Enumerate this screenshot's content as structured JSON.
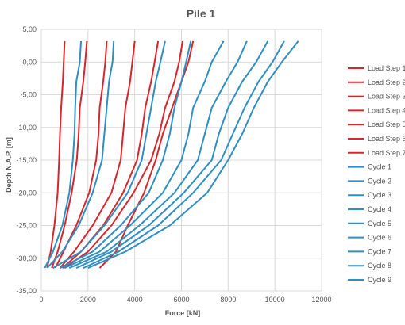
{
  "chart_data": {
    "type": "line",
    "title": "Pile 1",
    "xlabel": "Force [kN]",
    "ylabel": "Depth N.A.P. [m]",
    "xlim": [
      0,
      12000
    ],
    "ylim": [
      -35,
      5
    ],
    "x_ticks": [
      "0",
      "2000",
      "4000",
      "6000",
      "8000",
      "10000",
      "12000"
    ],
    "y_ticks": [
      "5,00",
      "0,00",
      "-5,00",
      "-10,00",
      "-15,00",
      "-20,00",
      "-25,00",
      "-30,00",
      "-35,00"
    ],
    "grid": true,
    "legend_position": "right",
    "colors": {
      "load_step": "#d9262b",
      "cycle": "#2e8fc4"
    },
    "series": [
      {
        "name": "Load Step 1",
        "color": "#d9262b",
        "points": [
          [
            1000,
            3.2
          ],
          [
            960,
            0
          ],
          [
            920,
            -3
          ],
          [
            850,
            -7
          ],
          [
            800,
            -11
          ],
          [
            760,
            -15
          ],
          [
            700,
            -20
          ],
          [
            560,
            -25
          ],
          [
            400,
            -29
          ],
          [
            250,
            -31.5
          ]
        ]
      },
      {
        "name": "Load Step 2",
        "color": "#d9262b",
        "points": [
          [
            1950,
            3.2
          ],
          [
            1880,
            0
          ],
          [
            1800,
            -3
          ],
          [
            1650,
            -7
          ],
          [
            1600,
            -11
          ],
          [
            1520,
            -15
          ],
          [
            1300,
            -20
          ],
          [
            1000,
            -25
          ],
          [
            700,
            -29
          ],
          [
            450,
            -31.5
          ]
        ]
      },
      {
        "name": "Load Step 3",
        "color": "#d9262b",
        "points": [
          [
            4000,
            3.2
          ],
          [
            3900,
            0
          ],
          [
            3800,
            -3
          ],
          [
            3600,
            -7
          ],
          [
            3500,
            -11
          ],
          [
            3400,
            -15
          ],
          [
            3000,
            -20
          ],
          [
            2200,
            -25
          ],
          [
            1400,
            -29
          ],
          [
            800,
            -31.5
          ]
        ]
      },
      {
        "name": "Load Step 4",
        "color": "#d9262b",
        "points": [
          [
            2800,
            3.2
          ],
          [
            2740,
            0
          ],
          [
            2650,
            -3
          ],
          [
            2500,
            -7
          ],
          [
            2450,
            -11
          ],
          [
            2350,
            -15
          ],
          [
            2050,
            -20
          ],
          [
            1500,
            -25
          ],
          [
            950,
            -29
          ],
          [
            600,
            -31.5
          ]
        ]
      },
      {
        "name": "Load Step 5",
        "color": "#d9262b",
        "points": [
          [
            5000,
            3.2
          ],
          [
            4850,
            0
          ],
          [
            4700,
            -3
          ],
          [
            4450,
            -7
          ],
          [
            4300,
            -11
          ],
          [
            4100,
            -15
          ],
          [
            3500,
            -20
          ],
          [
            2650,
            -25
          ],
          [
            1700,
            -29
          ],
          [
            900,
            -31.5
          ]
        ]
      },
      {
        "name": "Load Step 6",
        "color": "#d9262b",
        "points": [
          [
            6050,
            3.2
          ],
          [
            5900,
            0
          ],
          [
            5700,
            -3
          ],
          [
            5300,
            -7
          ],
          [
            5050,
            -11
          ],
          [
            4700,
            -15
          ],
          [
            3950,
            -20
          ],
          [
            3000,
            -25
          ],
          [
            2000,
            -29
          ],
          [
            1000,
            -31.5
          ]
        ]
      },
      {
        "name": "Load Step 7",
        "color": "#d9262b",
        "points": [
          [
            6500,
            3.2
          ],
          [
            6300,
            0
          ],
          [
            6000,
            -3
          ],
          [
            5600,
            -7
          ],
          [
            5200,
            -11
          ],
          [
            4900,
            -15
          ],
          [
            4400,
            -20
          ],
          [
            3700,
            -25
          ],
          [
            3200,
            -29
          ],
          [
            2500,
            -31.5
          ]
        ]
      },
      {
        "name": "Cycle 1",
        "color": "#2e8fc4",
        "points": [
          [
            1700,
            3.2
          ],
          [
            1650,
            0
          ],
          [
            1500,
            -3
          ],
          [
            1450,
            -7
          ],
          [
            1420,
            -11
          ],
          [
            1350,
            -15
          ],
          [
            1200,
            -20
          ],
          [
            900,
            -25
          ],
          [
            500,
            -29
          ],
          [
            150,
            -31.5
          ]
        ]
      },
      {
        "name": "Cycle 2",
        "color": "#2e8fc4",
        "points": [
          [
            3100,
            3.2
          ],
          [
            3050,
            0
          ],
          [
            2900,
            -3
          ],
          [
            2800,
            -7
          ],
          [
            2700,
            -11
          ],
          [
            2600,
            -15
          ],
          [
            2200,
            -20
          ],
          [
            1600,
            -25
          ],
          [
            900,
            -29
          ],
          [
            250,
            -31.5
          ]
        ]
      },
      {
        "name": "Cycle 3",
        "color": "#2e8fc4",
        "points": [
          [
            5300,
            3.2
          ],
          [
            5100,
            0
          ],
          [
            4900,
            -3
          ],
          [
            4700,
            -7
          ],
          [
            4500,
            -11
          ],
          [
            4300,
            -15
          ],
          [
            3700,
            -20
          ],
          [
            2700,
            -25
          ],
          [
            1700,
            -29
          ],
          [
            500,
            -31.5
          ]
        ]
      },
      {
        "name": "Cycle 4",
        "color": "#2e8fc4",
        "points": [
          [
            6400,
            3.2
          ],
          [
            6200,
            0
          ],
          [
            6000,
            -3
          ],
          [
            5700,
            -7
          ],
          [
            5500,
            -11
          ],
          [
            5200,
            -15
          ],
          [
            4600,
            -20
          ],
          [
            3400,
            -25
          ],
          [
            2200,
            -29
          ],
          [
            800,
            -31.5
          ]
        ]
      },
      {
        "name": "Cycle 5",
        "color": "#2e8fc4",
        "points": [
          [
            7800,
            3.2
          ],
          [
            7300,
            0
          ],
          [
            7000,
            -3
          ],
          [
            6500,
            -7
          ],
          [
            6300,
            -11
          ],
          [
            6000,
            -15
          ],
          [
            5200,
            -20
          ],
          [
            3800,
            -25
          ],
          [
            2500,
            -29
          ],
          [
            1000,
            -31.5
          ]
        ]
      },
      {
        "name": "Cycle 6",
        "color": "#2e8fc4",
        "points": [
          [
            8800,
            3.2
          ],
          [
            8400,
            0
          ],
          [
            7900,
            -3
          ],
          [
            7300,
            -7
          ],
          [
            7000,
            -11
          ],
          [
            6700,
            -15
          ],
          [
            5700,
            -20
          ],
          [
            4200,
            -25
          ],
          [
            2800,
            -29
          ],
          [
            1200,
            -31.5
          ]
        ]
      },
      {
        "name": "Cycle 7",
        "color": "#2e8fc4",
        "points": [
          [
            9700,
            3.2
          ],
          [
            9200,
            0
          ],
          [
            8600,
            -3
          ],
          [
            8000,
            -7
          ],
          [
            7600,
            -11
          ],
          [
            7300,
            -15
          ],
          [
            6100,
            -20
          ],
          [
            4600,
            -25
          ],
          [
            3000,
            -29
          ],
          [
            1500,
            -31.5
          ]
        ]
      },
      {
        "name": "Cycle 8",
        "color": "#2e8fc4",
        "points": [
          [
            10400,
            3.2
          ],
          [
            9900,
            0
          ],
          [
            9300,
            -3
          ],
          [
            8700,
            -7
          ],
          [
            8200,
            -11
          ],
          [
            7700,
            -15
          ],
          [
            6500,
            -20
          ],
          [
            5000,
            -25
          ],
          [
            3300,
            -29
          ],
          [
            1800,
            -31.5
          ]
        ]
      },
      {
        "name": "Cycle 9",
        "color": "#2e8fc4",
        "points": [
          [
            11000,
            3.2
          ],
          [
            10300,
            0
          ],
          [
            9700,
            -3
          ],
          [
            9100,
            -7
          ],
          [
            8600,
            -11
          ],
          [
            8000,
            -15
          ],
          [
            7100,
            -20
          ],
          [
            5500,
            -25
          ],
          [
            3600,
            -29
          ],
          [
            2000,
            -31.5
          ]
        ]
      }
    ]
  }
}
